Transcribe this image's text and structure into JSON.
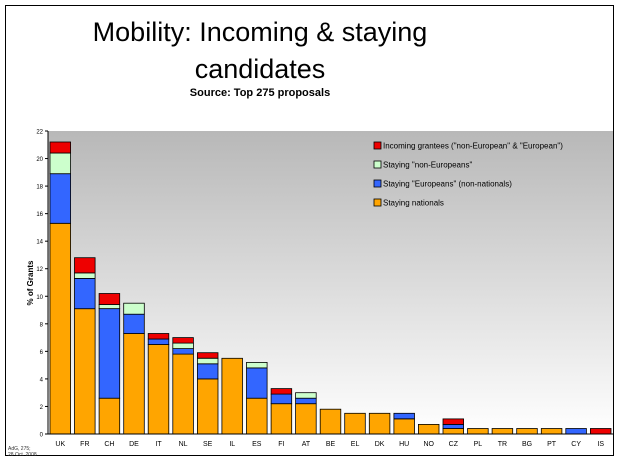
{
  "slide": {
    "title_line1": "Mobility: Incoming & staying",
    "title_line2": "candidates",
    "subtitle": "Source: Top 275 proposals",
    "footnote_line1": "AdG, 275;",
    "footnote_line2": "28 Oct. 2008"
  },
  "colors": {
    "staying_nationals": "#FFA500",
    "staying_europeans": "#3366FF",
    "staying_non_europeans": "#CCFFCC",
    "incoming": "#EE0000",
    "plot_bg_top": "#B8B8B8",
    "plot_bg_bottom": "#FFFFFF"
  },
  "chart_data": {
    "type": "bar",
    "stacked": true,
    "title": "",
    "xlabel": "",
    "ylabel": "% of Grants",
    "ylim": [
      0,
      22
    ],
    "yticks": [
      "0",
      "2",
      "4",
      "6",
      "8",
      "10",
      "12",
      "14",
      "16",
      "18",
      "20",
      "22"
    ],
    "grid": false,
    "legend_position": "top-right",
    "categories": [
      "UK",
      "FR",
      "CH",
      "DE",
      "IT",
      "NL",
      "SE",
      "IL",
      "ES",
      "FI",
      "AT",
      "BE",
      "EL",
      "DK",
      "HU",
      "NO",
      "CZ",
      "PL",
      "TR",
      "BG",
      "PT",
      "CY",
      "IS"
    ],
    "series": [
      {
        "name": "Staying nationals",
        "color_key": "staying_nationals",
        "values": [
          15.3,
          9.1,
          2.6,
          7.3,
          6.5,
          5.8,
          4.0,
          5.5,
          2.6,
          2.2,
          2.2,
          1.8,
          1.5,
          1.5,
          1.1,
          0.7,
          0.4,
          0.4,
          0.4,
          0.4,
          0.4,
          0.0,
          0.0
        ]
      },
      {
        "name": "Staying \"Europeans\" (non-nationals)",
        "color_key": "staying_europeans",
        "values": [
          3.6,
          2.2,
          6.5,
          1.4,
          0.4,
          0.4,
          1.1,
          0.0,
          2.2,
          0.7,
          0.4,
          0.0,
          0.0,
          0.0,
          0.4,
          0.0,
          0.3,
          0.0,
          0.0,
          0.0,
          0.0,
          0.4,
          0.0
        ]
      },
      {
        "name": "Staying \"non-Europeans\"",
        "color_key": "staying_non_europeans",
        "values": [
          1.5,
          0.4,
          0.3,
          0.8,
          0.0,
          0.4,
          0.4,
          0.0,
          0.4,
          0.0,
          0.4,
          0.0,
          0.0,
          0.0,
          0.0,
          0.0,
          0.0,
          0.0,
          0.0,
          0.0,
          0.0,
          0.0,
          0.0
        ]
      },
      {
        "name": "Incoming grantees (\"non-European\" & \"European\")",
        "color_key": "incoming",
        "values": [
          0.8,
          1.1,
          0.8,
          0.0,
          0.4,
          0.4,
          0.4,
          0.0,
          0.0,
          0.4,
          0.0,
          0.0,
          0.0,
          0.0,
          0.0,
          0.0,
          0.4,
          0.0,
          0.0,
          0.0,
          0.0,
          0.0,
          0.4
        ]
      }
    ],
    "legend_order": [
      "Incoming grantees (\"non-European\" & \"European\")",
      "Staying \"non-Europeans\"",
      "Staying \"Europeans\" (non-nationals)",
      "Staying nationals"
    ]
  }
}
